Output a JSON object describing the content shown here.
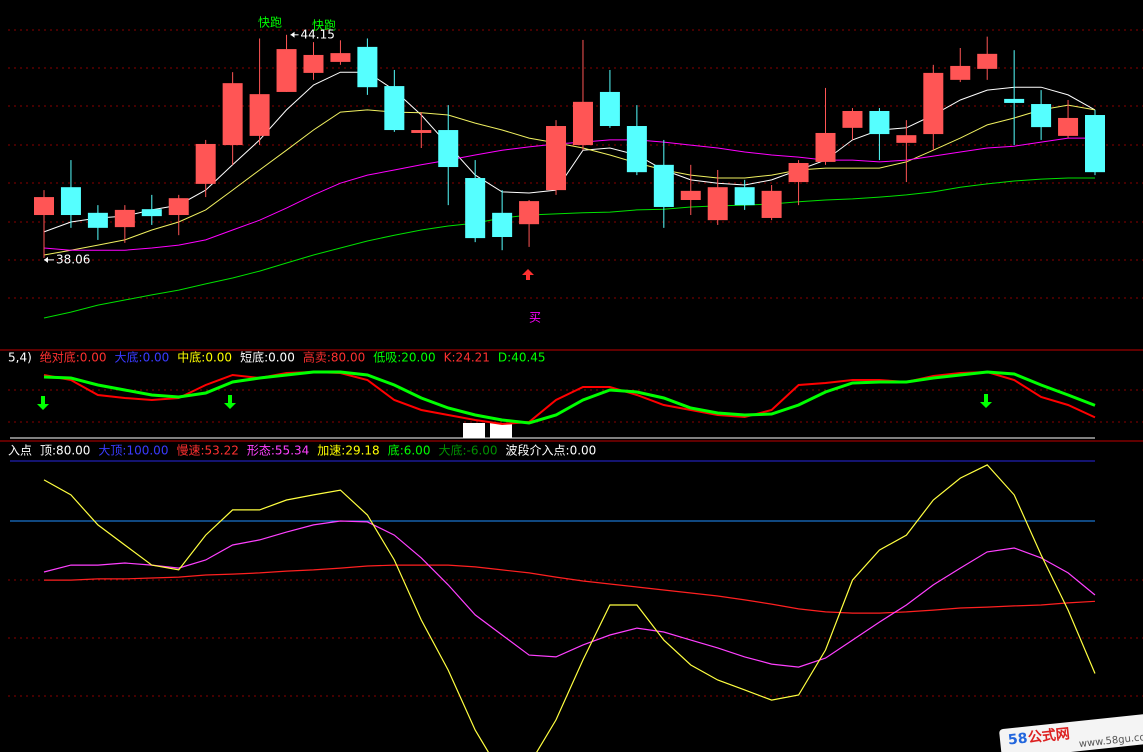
{
  "chart_data": [
    {
      "type": "candlestick",
      "ylim": [
        35.6,
        45.1
      ],
      "open": [
        39.23,
        39.99,
        39.29,
        38.9,
        39.39,
        39.23,
        40.08,
        41.14,
        41.39,
        42.59,
        43.11,
        43.41,
        43.82,
        42.75,
        41.47,
        41.55,
        40.24,
        39.29,
        38.98,
        39.91,
        41.14,
        42.59,
        41.66,
        40.6,
        39.64,
        39.09,
        39.99,
        39.15,
        40.13,
        40.68,
        41.61,
        42.07,
        41.2,
        41.44,
        42.92,
        43.22,
        42.4,
        42.26,
        41.39,
        41.96
      ],
      "high": [
        39.91,
        40.73,
        39.5,
        39.5,
        39.78,
        39.78,
        41.28,
        43.13,
        44.05,
        44.15,
        43.95,
        44.0,
        44.05,
        43.19,
        42.04,
        42.23,
        40.73,
        39.91,
        39.64,
        41.82,
        44.01,
        43.19,
        42.23,
        41.28,
        40.6,
        40.46,
        40.19,
        40.05,
        40.73,
        42.7,
        42.15,
        42.15,
        41.82,
        43.33,
        43.79,
        44.1,
        43.73,
        42.64,
        42.37,
        42.1
      ],
      "low": [
        38.06,
        38.88,
        38.55,
        38.47,
        38.96,
        38.68,
        39.72,
        40.6,
        41.14,
        42.59,
        42.92,
        43.33,
        42.51,
        41.5,
        41.06,
        39.5,
        38.49,
        38.27,
        38.36,
        39.78,
        41.0,
        41.61,
        40.32,
        38.88,
        39.23,
        38.96,
        39.37,
        39.09,
        39.5,
        40.6,
        41.28,
        40.73,
        40.13,
        41.0,
        42.86,
        42.92,
        41.14,
        41.28,
        41.33,
        40.32
      ],
      "close": [
        39.72,
        39.23,
        38.88,
        39.37,
        39.2,
        39.69,
        41.17,
        42.83,
        42.53,
        43.76,
        43.6,
        43.65,
        42.72,
        41.55,
        41.55,
        40.54,
        38.6,
        38.63,
        39.61,
        41.66,
        42.32,
        41.66,
        40.4,
        39.45,
        39.89,
        39.99,
        39.5,
        39.89,
        40.65,
        41.47,
        42.07,
        41.44,
        41.41,
        43.11,
        43.3,
        43.63,
        42.29,
        41.63,
        41.88,
        40.4
      ],
      "up_color": "#ff5555",
      "down_color": "#55ffff",
      "lines": [
        {
          "color": "#ffffff",
          "values": [
            38.77,
            39.04,
            39.15,
            39.2,
            39.37,
            39.5,
            39.91,
            40.6,
            41.28,
            42.1,
            42.78,
            43.13,
            43.13,
            42.64,
            41.96,
            41.14,
            40.32,
            39.86,
            39.83,
            39.91,
            41.0,
            41.06,
            40.87,
            40.46,
            40.19,
            40.1,
            40.05,
            40.19,
            40.46,
            40.73,
            41.28,
            41.55,
            41.61,
            41.96,
            42.37,
            42.64,
            42.72,
            42.72,
            42.51,
            42.1
          ]
        },
        {
          "color": "#f0f060",
          "values": [
            38.14,
            38.27,
            38.41,
            38.55,
            38.82,
            39.04,
            39.37,
            39.91,
            40.46,
            41.0,
            41.55,
            42.04,
            42.1,
            42.04,
            42.02,
            41.96,
            41.74,
            41.55,
            41.33,
            41.2,
            41.06,
            40.87,
            40.65,
            40.46,
            40.32,
            40.24,
            40.24,
            40.32,
            40.46,
            40.51,
            40.51,
            40.51,
            40.68,
            41.0,
            41.33,
            41.69,
            41.88,
            42.1,
            42.23,
            42.1
          ]
        },
        {
          "color": "#ff00ff",
          "values": [
            38.33,
            38.27,
            38.27,
            38.27,
            38.33,
            38.41,
            38.55,
            38.82,
            39.09,
            39.42,
            39.78,
            40.1,
            40.32,
            40.46,
            40.6,
            40.73,
            40.87,
            41.0,
            41.09,
            41.17,
            41.22,
            41.28,
            41.28,
            41.22,
            41.14,
            41.06,
            40.95,
            40.87,
            40.81,
            40.73,
            40.73,
            40.68,
            40.73,
            40.84,
            40.95,
            41.06,
            41.11,
            41.22,
            41.33,
            41.33
          ]
        },
        {
          "color": "#00e000",
          "values": [
            36.42,
            36.58,
            36.77,
            36.91,
            37.05,
            37.18,
            37.35,
            37.51,
            37.7,
            37.92,
            38.14,
            38.33,
            38.52,
            38.68,
            38.82,
            38.93,
            39.01,
            39.15,
            39.23,
            39.26,
            39.29,
            39.31,
            39.37,
            39.39,
            39.45,
            39.48,
            39.5,
            39.53,
            39.59,
            39.64,
            39.67,
            39.72,
            39.78,
            39.86,
            39.99,
            40.08,
            40.16,
            40.21,
            40.24,
            40.24
          ]
        }
      ],
      "max_label": 44.15,
      "min_label": 38.06,
      "annotations": [
        {
          "text": "快跑",
          "color": "#00ff00"
        },
        {
          "text": "快跑",
          "color": "#00ff00"
        },
        {
          "text": "买",
          "color": "#ff00ff"
        }
      ]
    },
    {
      "type": "line",
      "ylim": [
        -5,
        110
      ],
      "header": [
        {
          "text": "5,4)",
          "color": "#ffffff"
        },
        {
          "text": "绝对底:0.00",
          "color": "#ff3030"
        },
        {
          "text": "大底:0.00",
          "color": "#3a3aff"
        },
        {
          "text": "中底:0.00",
          "color": "#ffff00"
        },
        {
          "text": "短底:0.00",
          "color": "#ffffff"
        },
        {
          "text": "高卖:80.00",
          "color": "#ff3030"
        },
        {
          "text": "低吸:20.00",
          "color": "#00ff00"
        },
        {
          "text": "K:24.21",
          "color": "#ff3030"
        },
        {
          "text": "D:40.45",
          "color": "#00ff00"
        }
      ],
      "series": [
        {
          "color": "#ff0000",
          "width": 2,
          "values": [
            81.6,
            74.8,
            54.5,
            50.5,
            47.8,
            50.5,
            68.1,
            81.6,
            77.5,
            84.3,
            85.7,
            84.3,
            74.8,
            47.8,
            34.2,
            27.5,
            20.7,
            15.3,
            18.0,
            47.8,
            65.4,
            65.4,
            54.5,
            41.0,
            34.2,
            27.5,
            24.8,
            34.2,
            68.1,
            70.8,
            74.8,
            74.8,
            72.1,
            80.3,
            84.3,
            85.7,
            74.8,
            51.8,
            41.0,
            24.21
          ]
        },
        {
          "color": "#00ff00",
          "width": 3,
          "values": [
            78.9,
            77.5,
            68.1,
            61.3,
            54.5,
            51.8,
            57.2,
            72.1,
            77.5,
            81.6,
            85.7,
            85.7,
            81.6,
            68.1,
            50.5,
            36.9,
            27.5,
            20.7,
            16.7,
            27.5,
            47.8,
            61.3,
            58.6,
            50.5,
            36.9,
            30.2,
            27.5,
            28.8,
            41.0,
            58.6,
            70.8,
            72.1,
            72.1,
            77.5,
            81.6,
            85.7,
            83.0,
            68.1,
            54.5,
            40.45
          ]
        }
      ]
    },
    {
      "type": "line",
      "ylim": [
        3,
        101
      ],
      "header": [
        {
          "text": "入点",
          "color": "#ffffff"
        },
        {
          "text": "顶:80.00",
          "color": "#ffffff"
        },
        {
          "text": "大顶:100.00",
          "color": "#3a3aff"
        },
        {
          "text": "慢速:53.22",
          "color": "#ff3030"
        },
        {
          "text": "形态:55.34",
          "color": "#ff40ff"
        },
        {
          "text": "加速:29.18",
          "color": "#ffff00"
        },
        {
          "text": "底:6.00",
          "color": "#00ff00"
        },
        {
          "text": "大底:-6.00",
          "color": "#009000"
        },
        {
          "text": "波段介入点:0.00",
          "color": "#ffffff"
        }
      ],
      "hlines": [
        {
          "value": 100,
          "color": "#2828e0"
        },
        {
          "value": 80,
          "color": "#2090ff"
        }
      ],
      "series": [
        {
          "color": "#ff2020",
          "width": 1.2,
          "values": [
            60.3,
            60.3,
            60.7,
            60.7,
            61.0,
            61.3,
            62.0,
            62.3,
            62.7,
            63.3,
            63.7,
            64.3,
            65.0,
            65.3,
            65.3,
            65.3,
            64.7,
            63.7,
            62.7,
            61.3,
            60.0,
            59.0,
            58.0,
            57.0,
            56.0,
            55.0,
            53.7,
            52.3,
            50.7,
            49.7,
            49.3,
            49.3,
            49.7,
            50.3,
            51.0,
            51.3,
            51.7,
            52.0,
            52.7,
            53.22
          ]
        },
        {
          "color": "#ff40ff",
          "width": 1.2,
          "values": [
            63.0,
            65.3,
            65.3,
            66.0,
            65.3,
            64.3,
            67.0,
            72.0,
            73.7,
            76.3,
            78.7,
            80.0,
            79.7,
            75.3,
            67.7,
            58.7,
            48.7,
            42.0,
            35.3,
            34.7,
            38.7,
            42.0,
            44.3,
            43.0,
            40.3,
            37.7,
            34.7,
            32.3,
            31.3,
            34.3,
            40.3,
            46.3,
            52.0,
            58.7,
            64.3,
            69.7,
            71.0,
            67.7,
            62.7,
            55.34
          ]
        },
        {
          "color": "#ffff40",
          "width": 1.2,
          "values": [
            93.7,
            88.7,
            78.7,
            72.0,
            65.3,
            63.7,
            75.3,
            83.7,
            83.7,
            87.0,
            88.7,
            90.3,
            82.0,
            67.0,
            47.0,
            30.3,
            10.3,
            -4.7,
            -1.3,
            13.7,
            33.7,
            52.0,
            52.0,
            40.3,
            32.0,
            27.0,
            23.7,
            20.3,
            22.0,
            37.0,
            60.3,
            70.3,
            75.3,
            87.0,
            94.3,
            98.7,
            88.7,
            68.7,
            50.3,
            29.18
          ]
        }
      ]
    }
  ],
  "watermark": {
    "number": "58",
    "brand": "公式网",
    "url": "www.58gu.com"
  }
}
